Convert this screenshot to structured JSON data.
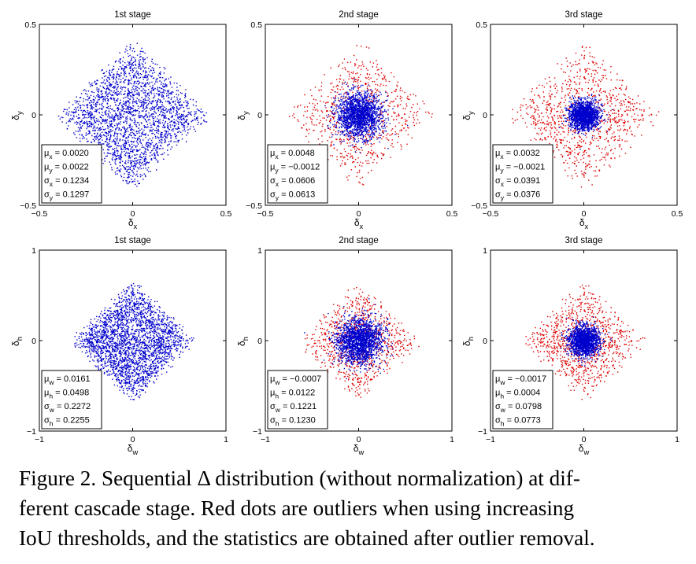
{
  "chart_data": [
    {
      "type": "scatter",
      "title": "1st stage",
      "xlabel": "δx",
      "ylabel": "δy",
      "xlim": [
        -0.5,
        0.5
      ],
      "ylim": [
        -0.5,
        0.5
      ],
      "xticks": [
        "−0.5",
        "0",
        "0.5"
      ],
      "yticks": [
        "0.5",
        "0",
        "−0.5"
      ],
      "stats": [
        {
          "sym": "μ",
          "sub": "x",
          "val": "0.0020"
        },
        {
          "sym": "μ",
          "sub": "y",
          "val": "0.0022"
        },
        {
          "sym": "σ",
          "sub": "x",
          "val": "0.1234"
        },
        {
          "sym": "σ",
          "sub": "y",
          "val": "0.1297"
        }
      ],
      "series": [
        {
          "name": "inliers",
          "color": "#0000cc",
          "spread": 0.4,
          "shape": "diamond",
          "n": 2400
        }
      ]
    },
    {
      "type": "scatter",
      "title": "2nd stage",
      "xlabel": "δx",
      "ylabel": "δy",
      "xlim": [
        -0.5,
        0.5
      ],
      "ylim": [
        -0.5,
        0.5
      ],
      "xticks": [
        "−0.5",
        "0",
        "0.5"
      ],
      "yticks": [
        "0.5",
        "0",
        "−0.5"
      ],
      "stats": [
        {
          "sym": "μ",
          "sub": "x",
          "val": "0.0048"
        },
        {
          "sym": "μ",
          "sub": "y",
          "val": "−0.0012"
        },
        {
          "sym": "σ",
          "sub": "x",
          "val": "0.0606"
        },
        {
          "sym": "σ",
          "sub": "y",
          "val": "0.0613"
        }
      ],
      "series": [
        {
          "name": "outliers",
          "color": "#dd0000",
          "spread": 0.4,
          "shape": "diamond",
          "n": 700
        },
        {
          "name": "inliers",
          "color": "#0000cc",
          "spread": 0.0606,
          "shape": "gauss",
          "n": 1800
        }
      ]
    },
    {
      "type": "scatter",
      "title": "3rd stage",
      "xlabel": "δx",
      "ylabel": "δy",
      "xlim": [
        -0.5,
        0.5
      ],
      "ylim": [
        -0.5,
        0.5
      ],
      "xticks": [
        "−0.5",
        "0",
        "0.5"
      ],
      "yticks": [
        "0.5",
        "0",
        "−0.5"
      ],
      "stats": [
        {
          "sym": "μ",
          "sub": "x",
          "val": "0.0032"
        },
        {
          "sym": "μ",
          "sub": "y",
          "val": "−0.0021"
        },
        {
          "sym": "σ",
          "sub": "x",
          "val": "0.0391"
        },
        {
          "sym": "σ",
          "sub": "y",
          "val": "0.0376"
        }
      ],
      "series": [
        {
          "name": "outliers",
          "color": "#dd0000",
          "spread": 0.4,
          "shape": "diamond",
          "n": 900
        },
        {
          "name": "inliers",
          "color": "#0000cc",
          "spread": 0.039,
          "shape": "gauss",
          "n": 1600
        }
      ]
    },
    {
      "type": "scatter",
      "title": "1st stage",
      "xlabel": "δw",
      "ylabel": "δh",
      "xlim": [
        -1,
        1
      ],
      "ylim": [
        -1,
        1
      ],
      "xticks": [
        "−1",
        "0",
        "1"
      ],
      "yticks": [
        "1",
        "0",
        "−1"
      ],
      "stats": [
        {
          "sym": "μ",
          "sub": "w",
          "val": "0.0161"
        },
        {
          "sym": "μ",
          "sub": "h",
          "val": "0.0498"
        },
        {
          "sym": "σ",
          "sub": "w",
          "val": "0.2272"
        },
        {
          "sym": "σ",
          "sub": "h",
          "val": "0.2255"
        }
      ],
      "series": [
        {
          "name": "inliers",
          "color": "#0000cc",
          "spread": 0.65,
          "shape": "diamond",
          "n": 2600
        }
      ]
    },
    {
      "type": "scatter",
      "title": "2nd stage",
      "xlabel": "δw",
      "ylabel": "δh",
      "xlim": [
        -1,
        1
      ],
      "ylim": [
        -1,
        1
      ],
      "xticks": [
        "−1",
        "0",
        "1"
      ],
      "yticks": [
        "1",
        "0",
        "−1"
      ],
      "stats": [
        {
          "sym": "μ",
          "sub": "w",
          "val": "−0.0007"
        },
        {
          "sym": "μ",
          "sub": "h",
          "val": "0.0122"
        },
        {
          "sym": "σ",
          "sub": "w",
          "val": "0.1221"
        },
        {
          "sym": "σ",
          "sub": "h",
          "val": "0.1230"
        }
      ],
      "series": [
        {
          "name": "outliers",
          "color": "#dd0000",
          "spread": 0.65,
          "shape": "diamond",
          "n": 800
        },
        {
          "name": "inliers",
          "color": "#0000cc",
          "spread": 0.122,
          "shape": "gauss",
          "n": 1900
        }
      ]
    },
    {
      "type": "scatter",
      "title": "3rd stage",
      "xlabel": "δw",
      "ylabel": "δh",
      "xlim": [
        -1,
        1
      ],
      "ylim": [
        -1,
        1
      ],
      "xticks": [
        "−1",
        "0",
        "1"
      ],
      "yticks": [
        "1",
        "0",
        "−1"
      ],
      "stats": [
        {
          "sym": "μ",
          "sub": "w",
          "val": "−0.0017"
        },
        {
          "sym": "μ",
          "sub": "h",
          "val": "0.0004"
        },
        {
          "sym": "σ",
          "sub": "w",
          "val": "0.0798"
        },
        {
          "sym": "σ",
          "sub": "h",
          "val": "0.0773"
        }
      ],
      "series": [
        {
          "name": "outliers",
          "color": "#dd0000",
          "spread": 0.65,
          "shape": "diamond",
          "n": 900
        },
        {
          "name": "inliers",
          "color": "#0000cc",
          "spread": 0.08,
          "shape": "gauss",
          "n": 1700
        }
      ]
    }
  ],
  "caption": {
    "line1": "Figure 2. Sequential Δ distribution (without normalization) at dif-",
    "line2": "ferent cascade stage.  Red dots are outliers when using increasing",
    "line3": "IoU thresholds, and the statistics are obtained after outlier removal."
  }
}
